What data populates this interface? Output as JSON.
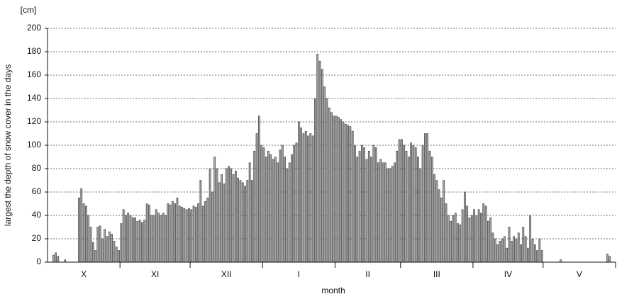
{
  "chart_data": {
    "type": "bar",
    "y_unit": "[cm]",
    "y_label": "largest the depth of snow cover in the days",
    "x_label": "month",
    "categories": [
      "X",
      "XI",
      "XII",
      "I",
      "II",
      "III",
      "IV",
      "V"
    ],
    "values": [
      [
        0,
        0,
        6,
        8,
        5,
        0,
        0,
        2,
        0,
        0,
        0,
        0,
        0,
        55,
        63,
        50,
        48,
        40,
        30,
        17,
        10,
        30,
        31,
        20,
        28,
        22,
        26,
        24,
        18,
        13,
        10
      ],
      [
        33,
        45,
        40,
        42,
        40,
        38,
        38,
        35,
        36,
        34,
        36,
        50,
        49,
        40,
        40,
        45,
        42,
        40,
        42,
        40,
        50,
        49,
        52,
        50,
        55,
        48,
        47,
        46,
        45,
        46
      ],
      [
        45,
        48,
        47,
        50,
        70,
        48,
        52,
        55,
        80,
        60,
        90,
        80,
        68,
        75,
        67,
        80,
        82,
        80,
        75,
        78,
        72,
        70,
        68,
        65,
        70,
        85,
        70,
        95,
        110,
        125,
        100
      ],
      [
        98,
        90,
        95,
        92,
        88,
        90,
        85,
        96,
        100,
        90,
        80,
        85,
        92,
        100,
        102,
        120,
        115,
        110,
        112,
        108,
        110,
        108,
        140,
        178,
        172,
        165,
        150,
        140,
        132,
        128,
        125
      ],
      [
        125,
        124,
        122,
        120,
        118,
        117,
        116,
        112,
        100,
        90,
        95,
        100,
        98,
        88,
        95,
        90,
        100,
        98,
        85,
        88,
        85,
        85,
        80,
        80,
        82,
        85,
        95,
        105
      ],
      [
        105,
        100,
        95,
        90,
        102,
        100,
        98,
        90,
        80,
        100,
        110,
        110,
        95,
        90,
        75,
        70,
        62,
        55,
        70,
        50,
        40,
        35,
        40,
        42,
        33,
        32,
        45,
        60,
        48,
        38,
        40
      ],
      [
        45,
        40,
        45,
        42,
        50,
        48,
        35,
        38,
        25,
        20,
        15,
        18,
        20,
        22,
        12,
        30,
        18,
        22,
        20,
        25,
        15,
        30,
        22,
        12,
        40,
        20,
        15,
        10,
        20,
        10
      ],
      [
        0,
        0,
        0,
        0,
        0,
        0,
        0,
        2,
        0,
        0,
        0,
        0,
        0,
        0,
        0,
        0,
        0,
        0,
        0,
        0,
        0,
        0,
        0,
        0,
        0,
        0,
        0,
        7,
        5,
        0,
        0
      ]
    ],
    "color": "#a6a6a6",
    "ylim": [
      0,
      200
    ],
    "yticks": [
      0,
      20,
      40,
      60,
      80,
      100,
      120,
      140,
      160,
      180,
      200
    ],
    "grid": true
  }
}
